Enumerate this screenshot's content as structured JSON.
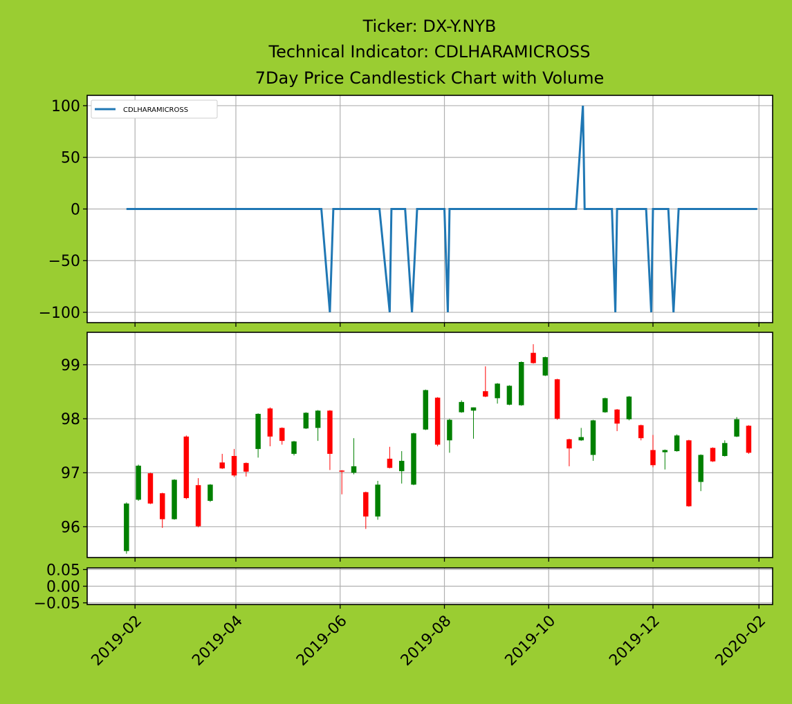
{
  "figure": {
    "background": "#9acd32",
    "title_lines": [
      "Ticker: DX-Y.NYB",
      "Technical Indicator: CDLHARAMICROSS",
      "7Day Price Candlestick Chart with Volume"
    ]
  },
  "colors": {
    "indicator_line": "#1f77b4",
    "candle_up": "#008000",
    "candle_down": "#ff0000",
    "grid": "#b0b0b0",
    "panel_bg": "#ffffff"
  },
  "chart_data": [
    {
      "type": "line",
      "panel": "indicator",
      "legend": {
        "label": "CDLHARAMICROSS",
        "placement": "upper-left"
      },
      "grid": true,
      "xlim": [
        "2019-01-04",
        "2020-02-09"
      ],
      "ylim": [
        -110,
        110
      ],
      "yticks": [
        100,
        50,
        0,
        -50,
        -100
      ],
      "ytick_labels": [
        "100",
        "50",
        "0",
        "−50",
        "−100"
      ],
      "series": [
        {
          "name": "CDLHARAMICROSS",
          "points": [
            {
              "x": "2019-01-27",
              "y": 0
            },
            {
              "x": "2019-05-21",
              "y": 0
            },
            {
              "x": "2019-05-26",
              "y": -100
            },
            {
              "x": "2019-05-28",
              "y": 0
            },
            {
              "x": "2019-06-24",
              "y": 0
            },
            {
              "x": "2019-06-30",
              "y": -100
            },
            {
              "x": "2019-07-01",
              "y": 0
            },
            {
              "x": "2019-07-09",
              "y": 0
            },
            {
              "x": "2019-07-13",
              "y": -100
            },
            {
              "x": "2019-07-16",
              "y": 0
            },
            {
              "x": "2019-08-01",
              "y": 0
            },
            {
              "x": "2019-08-03",
              "y": -100
            },
            {
              "x": "2019-08-04",
              "y": 0
            },
            {
              "x": "2019-10-17",
              "y": 0
            },
            {
              "x": "2019-10-21",
              "y": 100
            },
            {
              "x": "2019-10-22",
              "y": 0
            },
            {
              "x": "2019-11-07",
              "y": 0
            },
            {
              "x": "2019-11-09",
              "y": -100
            },
            {
              "x": "2019-11-10",
              "y": 0
            },
            {
              "x": "2019-11-27",
              "y": 0
            },
            {
              "x": "2019-11-30",
              "y": -100
            },
            {
              "x": "2019-12-01",
              "y": 0
            },
            {
              "x": "2019-12-10",
              "y": 0
            },
            {
              "x": "2019-12-13",
              "y": -100
            },
            {
              "x": "2019-12-16",
              "y": 0
            },
            {
              "x": "2020-01-31",
              "y": 0
            }
          ]
        }
      ]
    },
    {
      "type": "candlestick",
      "panel": "price",
      "grid": true,
      "xlim": [
        "2019-01-04",
        "2020-02-09"
      ],
      "ylim": [
        95.43,
        99.6
      ],
      "yticks": [
        96,
        97,
        98,
        99
      ],
      "ytick_labels": [
        "96",
        "97",
        "98",
        "99"
      ],
      "candles": [
        {
          "date": "2019-01-27",
          "open": 95.55,
          "high": 96.45,
          "low": 95.5,
          "close": 96.43
        },
        {
          "date": "2019-02-03",
          "open": 96.5,
          "high": 97.15,
          "low": 96.48,
          "close": 97.13
        },
        {
          "date": "2019-02-10",
          "open": 96.99,
          "high": 97.0,
          "low": 96.42,
          "close": 96.43
        },
        {
          "date": "2019-02-17",
          "open": 96.62,
          "high": 96.63,
          "low": 95.98,
          "close": 96.14
        },
        {
          "date": "2019-02-24",
          "open": 96.14,
          "high": 96.88,
          "low": 96.13,
          "close": 96.87
        },
        {
          "date": "2019-03-03",
          "open": 97.67,
          "high": 97.69,
          "low": 96.51,
          "close": 96.53
        },
        {
          "date": "2019-03-10",
          "open": 96.77,
          "high": 96.9,
          "low": 95.99,
          "close": 96.01
        },
        {
          "date": "2019-03-17",
          "open": 96.48,
          "high": 96.79,
          "low": 96.46,
          "close": 96.78
        },
        {
          "date": "2019-03-24",
          "open": 97.19,
          "high": 97.35,
          "low": 97.07,
          "close": 97.08
        },
        {
          "date": "2019-03-31",
          "open": 97.31,
          "high": 97.44,
          "low": 96.92,
          "close": 96.95
        },
        {
          "date": "2019-04-07",
          "open": 97.18,
          "high": 97.19,
          "low": 96.93,
          "close": 97.02
        },
        {
          "date": "2019-04-14",
          "open": 97.44,
          "high": 98.1,
          "low": 97.28,
          "close": 98.09
        },
        {
          "date": "2019-04-21",
          "open": 98.19,
          "high": 98.21,
          "low": 97.49,
          "close": 97.67
        },
        {
          "date": "2019-04-28",
          "open": 97.83,
          "high": 97.84,
          "low": 97.52,
          "close": 97.59
        },
        {
          "date": "2019-05-05",
          "open": 97.35,
          "high": 97.59,
          "low": 97.32,
          "close": 97.58
        },
        {
          "date": "2019-05-12",
          "open": 97.82,
          "high": 98.12,
          "low": 97.81,
          "close": 98.11
        },
        {
          "date": "2019-05-19",
          "open": 97.83,
          "high": 98.16,
          "low": 97.59,
          "close": 98.15
        },
        {
          "date": "2019-05-26",
          "open": 98.15,
          "high": 98.16,
          "low": 97.05,
          "close": 97.35
        },
        {
          "date": "2019-06-02",
          "open": 97.04,
          "high": 97.05,
          "low": 96.6,
          "close": 97.02
        },
        {
          "date": "2019-06-09",
          "open": 97.0,
          "high": 97.64,
          "low": 96.97,
          "close": 97.12
        },
        {
          "date": "2019-06-16",
          "open": 96.64,
          "high": 96.65,
          "low": 95.96,
          "close": 96.19
        },
        {
          "date": "2019-06-23",
          "open": 96.19,
          "high": 96.85,
          "low": 96.13,
          "close": 96.78
        },
        {
          "date": "2019-06-30",
          "open": 97.26,
          "high": 97.48,
          "low": 97.08,
          "close": 97.09
        },
        {
          "date": "2019-07-07",
          "open": 97.03,
          "high": 97.4,
          "low": 96.8,
          "close": 97.22
        },
        {
          "date": "2019-07-14",
          "open": 96.78,
          "high": 97.74,
          "low": 96.77,
          "close": 97.73
        },
        {
          "date": "2019-07-21",
          "open": 97.8,
          "high": 98.54,
          "low": 97.79,
          "close": 98.53
        },
        {
          "date": "2019-07-28",
          "open": 98.39,
          "high": 98.4,
          "low": 97.49,
          "close": 97.52
        },
        {
          "date": "2019-08-04",
          "open": 97.6,
          "high": 98.0,
          "low": 97.37,
          "close": 97.98
        },
        {
          "date": "2019-08-11",
          "open": 98.12,
          "high": 98.34,
          "low": 98.11,
          "close": 98.31
        },
        {
          "date": "2019-08-18",
          "open": 98.15,
          "high": 98.21,
          "low": 97.63,
          "close": 98.21
        },
        {
          "date": "2019-08-25",
          "open": 98.51,
          "high": 98.97,
          "low": 98.4,
          "close": 98.41
        },
        {
          "date": "2019-09-01",
          "open": 98.38,
          "high": 98.66,
          "low": 98.28,
          "close": 98.65
        },
        {
          "date": "2019-09-08",
          "open": 98.26,
          "high": 98.62,
          "low": 98.25,
          "close": 98.61
        },
        {
          "date": "2019-09-15",
          "open": 98.25,
          "high": 99.06,
          "low": 98.24,
          "close": 99.05
        },
        {
          "date": "2019-09-22",
          "open": 99.22,
          "high": 99.38,
          "low": 99.02,
          "close": 99.03
        },
        {
          "date": "2019-09-29",
          "open": 98.8,
          "high": 99.15,
          "low": 98.79,
          "close": 99.14
        },
        {
          "date": "2019-10-06",
          "open": 98.73,
          "high": 98.74,
          "low": 97.98,
          "close": 98.0
        },
        {
          "date": "2019-10-13",
          "open": 97.62,
          "high": 97.63,
          "low": 97.12,
          "close": 97.45
        },
        {
          "date": "2019-10-20",
          "open": 97.6,
          "high": 97.83,
          "low": 97.59,
          "close": 97.66
        },
        {
          "date": "2019-10-27",
          "open": 97.33,
          "high": 97.98,
          "low": 97.22,
          "close": 97.97
        },
        {
          "date": "2019-11-03",
          "open": 98.12,
          "high": 98.39,
          "low": 98.11,
          "close": 98.38
        },
        {
          "date": "2019-11-10",
          "open": 98.17,
          "high": 98.18,
          "low": 97.77,
          "close": 97.91
        },
        {
          "date": "2019-11-17",
          "open": 97.99,
          "high": 98.42,
          "low": 97.97,
          "close": 98.41
        },
        {
          "date": "2019-11-24",
          "open": 97.88,
          "high": 97.89,
          "low": 97.6,
          "close": 97.64
        },
        {
          "date": "2019-12-01",
          "open": 97.42,
          "high": 97.7,
          "low": 97.1,
          "close": 97.14
        },
        {
          "date": "2019-12-08",
          "open": 97.38,
          "high": 97.43,
          "low": 97.06,
          "close": 97.42
        },
        {
          "date": "2019-12-15",
          "open": 97.4,
          "high": 97.71,
          "low": 97.39,
          "close": 97.69
        },
        {
          "date": "2019-12-22",
          "open": 97.6,
          "high": 97.61,
          "low": 96.37,
          "close": 96.38
        },
        {
          "date": "2019-12-29",
          "open": 96.83,
          "high": 97.34,
          "low": 96.66,
          "close": 97.33
        },
        {
          "date": "2020-01-05",
          "open": 97.46,
          "high": 97.47,
          "low": 97.2,
          "close": 97.21
        },
        {
          "date": "2020-01-12",
          "open": 97.31,
          "high": 97.6,
          "low": 97.3,
          "close": 97.55
        },
        {
          "date": "2020-01-19",
          "open": 97.67,
          "high": 98.03,
          "low": 97.66,
          "close": 97.99
        },
        {
          "date": "2020-01-26",
          "open": 97.87,
          "high": 97.88,
          "low": 97.35,
          "close": 97.37
        }
      ]
    },
    {
      "type": "bar",
      "panel": "volume",
      "grid": true,
      "xlim": [
        "2019-01-04",
        "2020-02-09"
      ],
      "ylim": [
        -0.055,
        0.055
      ],
      "yticks": [
        0.05,
        0.0,
        -0.05
      ],
      "ytick_labels": [
        "0.05",
        "0.00",
        "−0.05"
      ],
      "values": [],
      "xticks": [
        "2019-02-01",
        "2019-04-01",
        "2019-06-01",
        "2019-08-01",
        "2019-10-01",
        "2019-12-01",
        "2020-02-01"
      ],
      "xtick_labels": [
        "2019-02",
        "2019-04",
        "2019-06",
        "2019-08",
        "2019-10",
        "2019-12",
        "2020-02"
      ]
    }
  ]
}
